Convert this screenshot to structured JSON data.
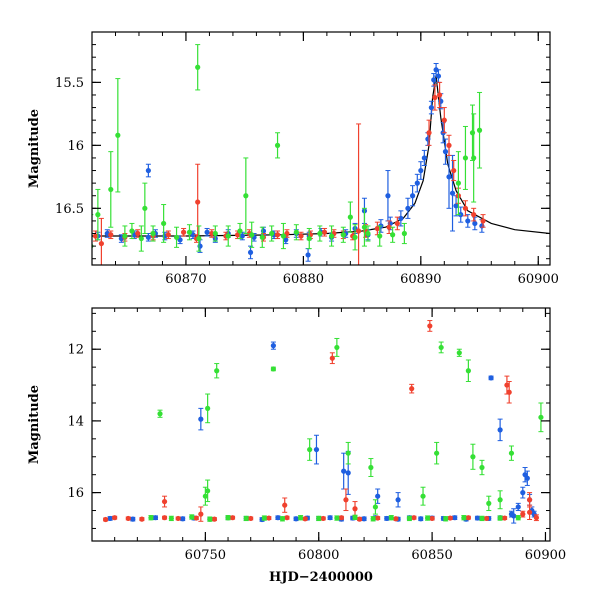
{
  "colors": {
    "blue": "#1f5fe0",
    "red": "#f0412e",
    "green": "#35e035",
    "model": "#000000"
  },
  "chart_data": [
    {
      "type": "scatter",
      "ylabel": "Magnitude",
      "xlabel": "",
      "xlim": [
        60862,
        60901
      ],
      "ylim": [
        16.95,
        15.1
      ],
      "y_inverted": true,
      "xticks": [
        60870,
        60880,
        60890,
        60900
      ],
      "yticks": [
        15.5,
        16,
        16.5
      ],
      "grid": false,
      "model_curve": {
        "x": [
          60862,
          60870,
          60878,
          60882,
          60885,
          60887,
          60888.5,
          60889.5,
          60890.2,
          60890.7,
          60891.0,
          60891.3,
          60891.7,
          60892.3,
          60893,
          60894,
          60896,
          60898,
          60901
        ],
        "y": [
          16.72,
          16.72,
          16.71,
          16.7,
          16.68,
          16.65,
          16.58,
          16.46,
          16.28,
          16.0,
          15.62,
          15.45,
          15.78,
          16.15,
          16.36,
          16.52,
          16.62,
          16.67,
          16.7
        ]
      },
      "series": [
        {
          "color": "blue",
          "x": [
            60862.5,
            60863.3,
            60864.5,
            60865.6,
            60866.8,
            60867.4,
            60868.2,
            60869.5,
            60870.6,
            60871.8,
            60872.5,
            60873.6,
            60874.8,
            60875.8,
            60876.6,
            60877.5,
            60878.5,
            60879.4,
            60880.5,
            60881.5,
            60882.4,
            60883.6,
            60884.4,
            60885.5,
            60886.6,
            60887.4,
            60888.3,
            60888.9,
            60889.3,
            60889.7,
            60890.0,
            60890.3,
            60890.6,
            60890.9,
            60891.1,
            60891.3,
            60891.5,
            60891.7,
            60891.9,
            60892.1,
            60892.4,
            60892.7,
            60893.0,
            60893.4,
            60894.0,
            60894.6,
            60895.2,
            60866.8,
            60871.2,
            60875.5,
            60880.4,
            60885.2,
            60887.2
          ],
          "y": [
            16.72,
            16.7,
            16.74,
            16.71,
            16.73,
            16.7,
            16.72,
            16.75,
            16.71,
            16.69,
            16.74,
            16.7,
            16.72,
            16.73,
            16.68,
            16.71,
            16.75,
            16.7,
            16.72,
            16.69,
            16.73,
            16.7,
            16.66,
            16.71,
            16.64,
            16.62,
            16.58,
            16.5,
            16.4,
            16.3,
            16.2,
            16.1,
            15.95,
            15.7,
            15.48,
            15.4,
            15.45,
            15.65,
            15.9,
            16.05,
            16.25,
            16.38,
            16.48,
            16.55,
            16.6,
            16.62,
            16.64,
            16.2,
            16.8,
            16.85,
            16.87,
            16.52,
            16.4
          ],
          "err": [
            0.03,
            0.03,
            0.03,
            0.03,
            0.03,
            0.03,
            0.03,
            0.03,
            0.03,
            0.03,
            0.03,
            0.03,
            0.03,
            0.03,
            0.03,
            0.03,
            0.03,
            0.03,
            0.03,
            0.03,
            0.03,
            0.03,
            0.04,
            0.04,
            0.05,
            0.05,
            0.06,
            0.08,
            0.08,
            0.07,
            0.07,
            0.06,
            0.05,
            0.05,
            0.05,
            0.05,
            0.05,
            0.06,
            0.08,
            0.1,
            0.25,
            0.3,
            0.08,
            0.06,
            0.05,
            0.05,
            0.05,
            0.05,
            0.05,
            0.05,
            0.05,
            0.1,
            0.2
          ]
        },
        {
          "color": "red",
          "x": [
            60862.3,
            60863.6,
            60864.8,
            60865.9,
            60867.2,
            60868.5,
            60869.8,
            60870.9,
            60872.2,
            60873.4,
            60874.4,
            60875.4,
            60876.6,
            60877.8,
            60878.6,
            60879.8,
            60880.6,
            60881.8,
            60882.6,
            60883.4,
            60884.2,
            60884.7,
            60885.3,
            60886.3,
            60887.3,
            60888.0,
            60890.7,
            60891.2,
            60891.6,
            60892.0,
            60892.4,
            60892.8,
            60893.2,
            60893.8,
            60894.5,
            60895.3,
            60871.0,
            60862.8
          ],
          "y": [
            16.72,
            16.71,
            16.73,
            16.7,
            16.72,
            16.71,
            16.69,
            16.74,
            16.7,
            16.72,
            16.71,
            16.7,
            16.73,
            16.71,
            16.7,
            16.72,
            16.71,
            16.69,
            16.7,
            16.71,
            16.72,
            16.68,
            16.68,
            16.66,
            16.65,
            16.62,
            15.9,
            15.62,
            15.6,
            15.8,
            16.0,
            16.2,
            16.4,
            16.5,
            16.55,
            16.6,
            16.45,
            16.78
          ],
          "err": [
            0.04,
            0.03,
            0.03,
            0.03,
            0.03,
            0.03,
            0.03,
            0.03,
            0.03,
            0.03,
            0.03,
            0.03,
            0.03,
            0.03,
            0.03,
            0.03,
            0.03,
            0.03,
            0.03,
            0.03,
            0.03,
            0.85,
            0.05,
            0.05,
            0.05,
            0.05,
            0.1,
            0.1,
            0.1,
            0.1,
            0.08,
            0.08,
            0.06,
            0.06,
            0.05,
            0.05,
            0.3,
            0.2
          ]
        },
        {
          "color": "green",
          "x": [
            60862.5,
            60863.6,
            60864.8,
            60865.4,
            60866.2,
            60867.2,
            60868.1,
            60869.2,
            60870.3,
            60871.1,
            60872.5,
            60873.6,
            60874.6,
            60875.6,
            60876.5,
            60877.3,
            60878.3,
            60879.4,
            60880.5,
            60881.4,
            60882.4,
            60883.4,
            60884.4,
            60885.5,
            60886.5,
            60887.6,
            60888.6,
            60893.2,
            60893.8,
            60894.4,
            60895.0,
            60871.0,
            60866.5,
            60864.2,
            60875.1,
            60884.0,
            60877.8,
            60861.9,
            60885.2,
            60894.5
          ],
          "y": [
            16.55,
            16.35,
            16.72,
            16.68,
            16.74,
            16.7,
            16.62,
            16.73,
            16.69,
            16.74,
            16.7,
            16.72,
            16.68,
            16.71,
            16.73,
            16.7,
            16.72,
            16.69,
            16.74,
            16.7,
            16.72,
            16.71,
            16.73,
            16.7,
            16.72,
            16.71,
            16.7,
            16.3,
            16.1,
            15.9,
            15.88,
            15.38,
            16.5,
            15.92,
            16.4,
            16.57,
            16.0,
            16.8,
            16.65,
            16.1
          ],
          "err": [
            0.2,
            0.3,
            0.08,
            0.06,
            0.1,
            0.06,
            0.15,
            0.08,
            0.06,
            0.1,
            0.06,
            0.08,
            0.06,
            0.1,
            0.08,
            0.06,
            0.1,
            0.06,
            0.08,
            0.06,
            0.08,
            0.06,
            0.1,
            0.06,
            0.08,
            0.06,
            0.08,
            0.25,
            0.25,
            0.22,
            0.3,
            0.18,
            0.2,
            0.45,
            0.3,
            0.12,
            0.1,
            0.25,
            0.15,
            0.35
          ]
        }
      ]
    },
    {
      "type": "scatter",
      "ylabel": "Magnitude",
      "xlabel": "HJD−2400000",
      "xlim": [
        60700,
        60902
      ],
      "ylim": [
        17.35,
        10.85
      ],
      "y_inverted": true,
      "xticks": [
        60750,
        60800,
        60850,
        60900
      ],
      "yticks": [
        12,
        14,
        16
      ],
      "grid": false,
      "series": [
        {
          "color": "blue",
          "x": [
            60708,
            60718,
            60728,
            60740,
            60745,
            60752,
            60760,
            60768,
            60775,
            60782,
            60790,
            60795,
            60800,
            60805,
            60810,
            60815,
            60820,
            60825,
            60830,
            60835,
            60840,
            60845,
            60850,
            60855,
            60860,
            60865,
            60870,
            60875,
            60880,
            60885,
            60888,
            60890,
            60891,
            60892,
            60893,
            60894,
            60895,
            60748,
            60780,
            60799,
            60811,
            60813,
            60826,
            60835,
            60876,
            60880,
            60886
          ],
          "y": [
            16.72,
            16.74,
            16.7,
            16.73,
            16.71,
            16.74,
            16.7,
            16.72,
            16.75,
            16.7,
            16.73,
            16.71,
            16.72,
            16.7,
            16.74,
            16.71,
            16.73,
            16.7,
            16.72,
            16.74,
            16.7,
            16.73,
            16.71,
            16.72,
            16.7,
            16.74,
            16.71,
            16.72,
            16.7,
            16.6,
            16.4,
            16.0,
            15.5,
            15.6,
            16.2,
            16.5,
            16.6,
            13.95,
            11.9,
            14.8,
            15.4,
            15.45,
            16.1,
            16.2,
            12.8,
            14.25,
            16.65
          ],
          "err": [
            0.05,
            0.05,
            0.05,
            0.05,
            0.05,
            0.05,
            0.05,
            0.05,
            0.05,
            0.05,
            0.05,
            0.05,
            0.05,
            0.05,
            0.05,
            0.05,
            0.05,
            0.05,
            0.05,
            0.05,
            0.05,
            0.05,
            0.05,
            0.05,
            0.05,
            0.05,
            0.05,
            0.05,
            0.05,
            0.08,
            0.1,
            0.15,
            0.2,
            0.2,
            0.15,
            0.1,
            0.08,
            0.3,
            0.1,
            0.4,
            0.5,
            0.6,
            0.2,
            0.2,
            0.05,
            0.3,
            0.2
          ]
        },
        {
          "color": "red",
          "x": [
            60706,
            60710,
            60716,
            60722,
            60732,
            60738,
            60746,
            60754,
            60762,
            60770,
            60778,
            60786,
            60794,
            60802,
            60810,
            60818,
            60826,
            60834,
            60842,
            60850,
            60858,
            60866,
            60874,
            60882,
            60890,
            60893,
            60896,
            60732,
            60748,
            60785,
            60806,
            60812,
            60816,
            60841,
            60849,
            60883,
            60884,
            60893
          ],
          "y": [
            16.75,
            16.7,
            16.72,
            16.74,
            16.7,
            16.72,
            16.71,
            16.74,
            16.7,
            16.72,
            16.71,
            16.7,
            16.73,
            16.72,
            16.7,
            16.74,
            16.71,
            16.73,
            16.7,
            16.72,
            16.71,
            16.7,
            16.72,
            16.71,
            16.6,
            16.2,
            16.7,
            16.25,
            16.6,
            16.35,
            12.25,
            16.2,
            16.45,
            13.1,
            11.35,
            13.0,
            13.2,
            16.55
          ],
          "err": [
            0.04,
            0.04,
            0.04,
            0.04,
            0.04,
            0.04,
            0.04,
            0.04,
            0.04,
            0.04,
            0.04,
            0.04,
            0.04,
            0.04,
            0.04,
            0.04,
            0.04,
            0.04,
            0.04,
            0.04,
            0.04,
            0.04,
            0.04,
            0.04,
            0.08,
            0.2,
            0.08,
            0.15,
            0.2,
            0.2,
            0.15,
            0.3,
            0.2,
            0.12,
            0.15,
            0.25,
            0.3,
            0.2
          ]
        },
        {
          "color": "green",
          "x": [
            60726,
            60735,
            60744,
            60752,
            60760,
            60768,
            60776,
            60784,
            60792,
            60800,
            60808,
            60816,
            60824,
            60832,
            60840,
            60848,
            60856,
            60864,
            60872,
            60880,
            60888,
            60730,
            60751,
            60755,
            60780,
            60796,
            60808,
            60813,
            60823,
            60846,
            60854,
            60862,
            60866,
            60868,
            60872,
            60875,
            60880,
            60885,
            60898,
            60751,
            60750,
            60825,
            60852
          ],
          "y": [
            16.7,
            16.72,
            16.68,
            16.74,
            16.7,
            16.72,
            16.71,
            16.73,
            16.7,
            16.72,
            16.71,
            16.69,
            16.73,
            16.7,
            16.72,
            16.71,
            16.73,
            16.7,
            16.72,
            16.71,
            16.7,
            13.8,
            13.65,
            12.6,
            12.55,
            14.8,
            11.95,
            14.9,
            15.3,
            16.1,
            11.95,
            12.1,
            12.6,
            15.0,
            15.3,
            16.3,
            16.2,
            14.9,
            13.9,
            15.95,
            16.1,
            16.4,
            14.9
          ],
          "err": [
            0.06,
            0.06,
            0.06,
            0.06,
            0.06,
            0.06,
            0.06,
            0.06,
            0.06,
            0.06,
            0.06,
            0.06,
            0.06,
            0.06,
            0.06,
            0.06,
            0.06,
            0.06,
            0.06,
            0.06,
            0.06,
            0.1,
            0.4,
            0.2,
            0.05,
            0.3,
            0.25,
            0.3,
            0.25,
            0.25,
            0.15,
            0.1,
            0.3,
            0.35,
            0.2,
            0.2,
            0.25,
            0.2,
            0.4,
            0.3,
            0.25,
            0.2,
            0.3
          ]
        }
      ]
    }
  ]
}
